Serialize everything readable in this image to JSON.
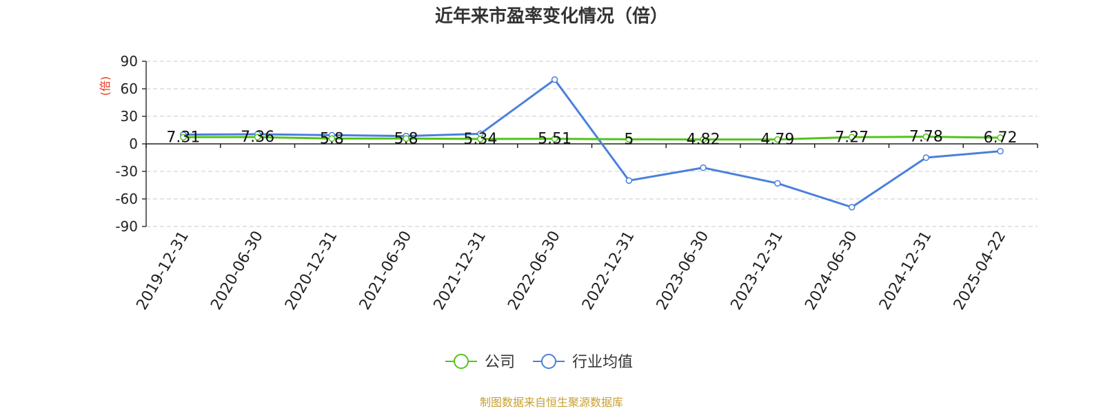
{
  "chart_data": {
    "type": "line",
    "title": "近年来市盈率变化情况（倍）",
    "ylabel": "(倍)",
    "ylim": [
      -90,
      90
    ],
    "yticks": [
      90,
      60,
      30,
      0,
      -30,
      -60,
      -90
    ],
    "grid": true,
    "legend_position": "bottom",
    "categories": [
      "2019-12-31",
      "2020-06-30",
      "2020-12-31",
      "2021-06-30",
      "2021-12-31",
      "2022-06-30",
      "2022-12-31",
      "2023-06-30",
      "2023-12-31",
      "2024-06-30",
      "2024-12-31",
      "2025-04-22"
    ],
    "series": [
      {
        "name": "公司",
        "color": "#52c41a",
        "values": [
          7.31,
          7.36,
          5.8,
          5.8,
          5.34,
          5.51,
          5,
          4.82,
          4.79,
          7.27,
          7.78,
          6.72
        ],
        "labels": [
          "7.31",
          "7.36",
          "5.8",
          "5.8",
          "5.34",
          "5.51",
          "5",
          "4.82",
          "4.79",
          "7.27",
          "7.78",
          "6.72"
        ]
      },
      {
        "name": "行业均值",
        "color": "#4a7fdc",
        "values": [
          10,
          10.5,
          9.5,
          8.5,
          11,
          70,
          -40,
          -26,
          -43,
          -69,
          -15,
          -8
        ]
      }
    ]
  },
  "footer": {
    "source": "制图数据来自恒生聚源数据库",
    "source_color": "#c8a030"
  },
  "ylabel_color": "#e8341c"
}
